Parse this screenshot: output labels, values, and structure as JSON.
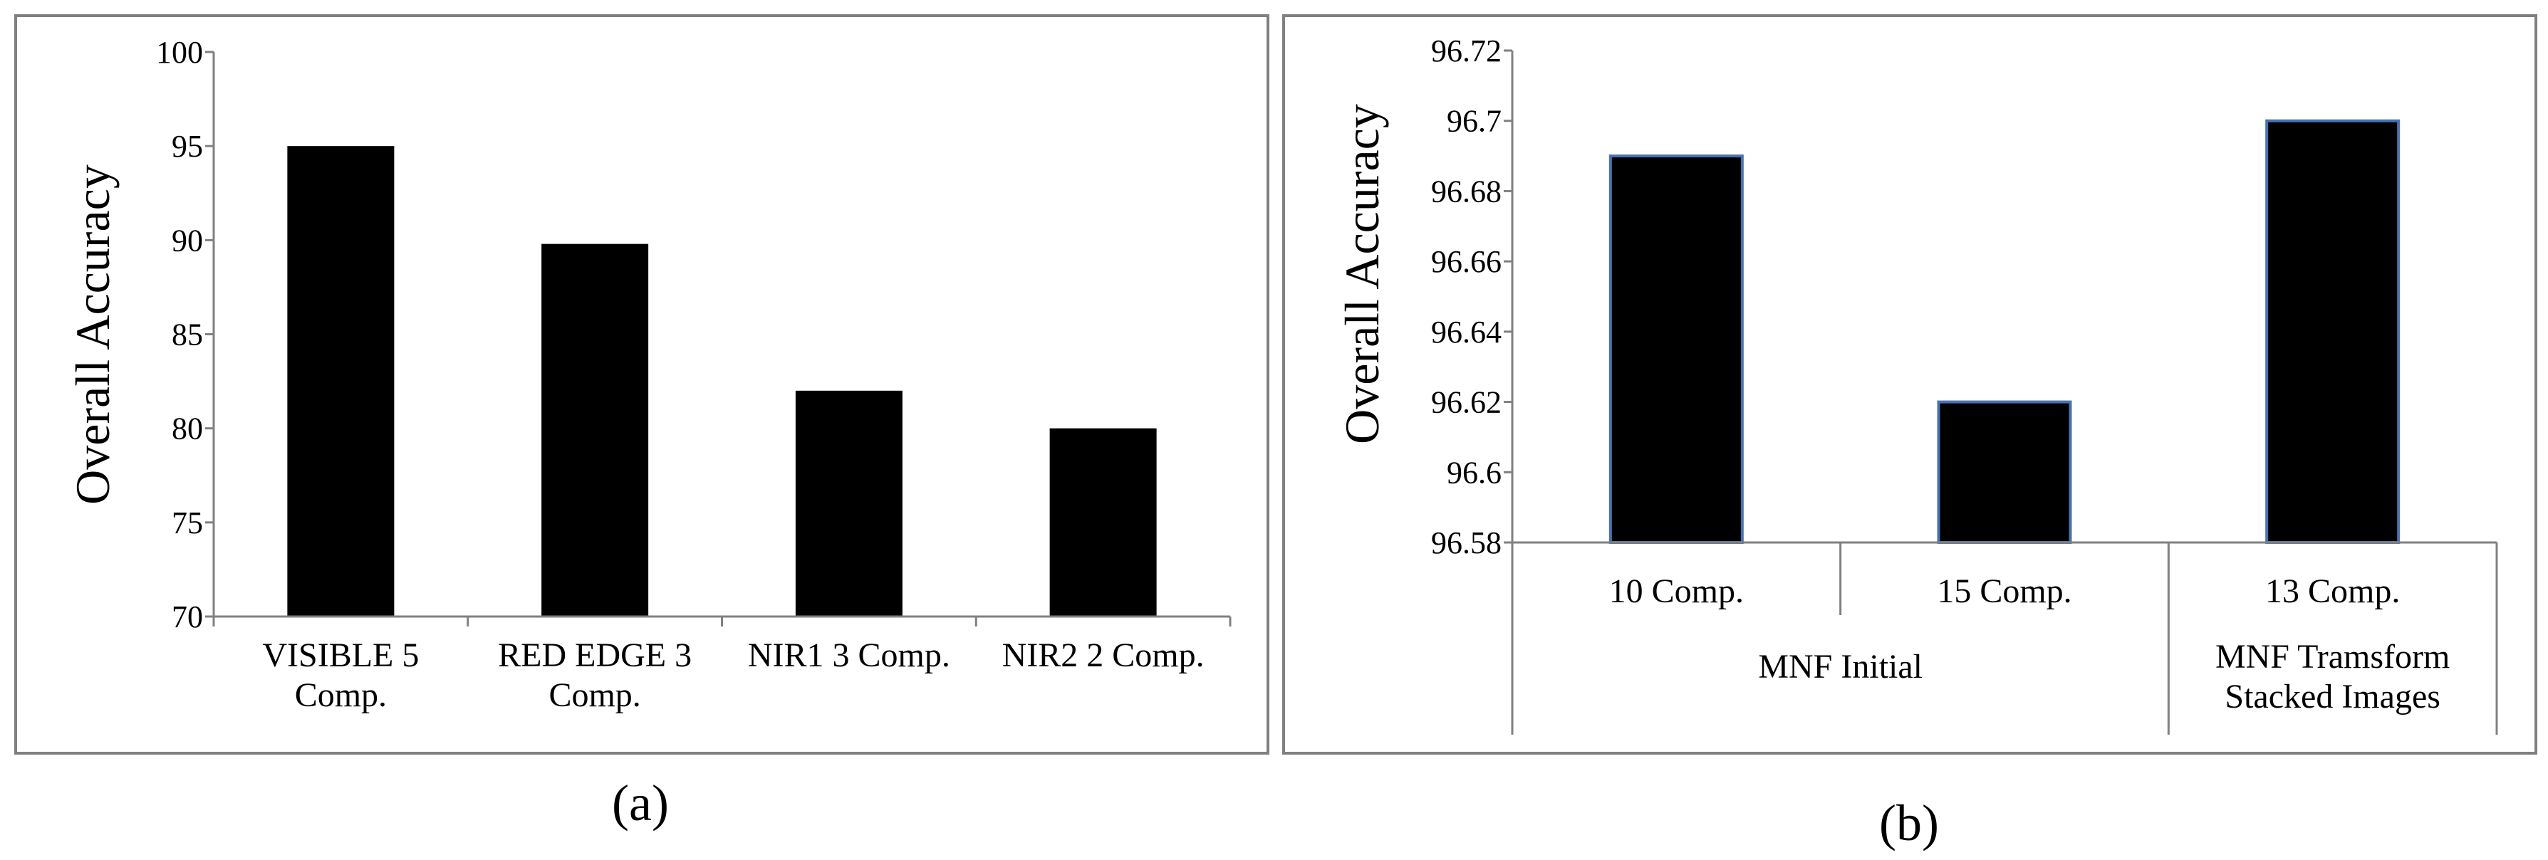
{
  "colors": {
    "bar_fill": "#000000",
    "bar_stroke_b": "#4a72b0",
    "frame": "#808080",
    "axis": "#808080",
    "background": "#ffffff"
  },
  "panel_labels": [
    "(a)",
    "(b)"
  ],
  "chart_data": [
    {
      "type": "bar",
      "panel": "(a)",
      "ylabel": "Overall Accuracy",
      "xlabel": "",
      "ylim": [
        70,
        100
      ],
      "yticks": [
        "70",
        "75",
        "80",
        "85",
        "90",
        "95",
        "100"
      ],
      "categories": [
        [
          "VISIBLE 5",
          "Comp."
        ],
        [
          "RED EDGE 3",
          "Comp."
        ],
        [
          "NIR1 3 Comp."
        ],
        [
          "NIR2 2 Comp."
        ]
      ],
      "values": [
        95,
        89.8,
        82,
        80
      ],
      "grid": false,
      "legend": "none"
    },
    {
      "type": "bar",
      "panel": "(b)",
      "ylabel": "Overall Accuracy",
      "xlabel": "",
      "ylim": [
        96.58,
        96.72
      ],
      "yticks": [
        "96.58",
        "96.6",
        "96.62",
        "96.64",
        "96.66",
        "96.68",
        "96.7",
        "96.72"
      ],
      "categories": [
        "10 Comp.",
        "15 Comp.",
        "13 Comp."
      ],
      "groups": [
        {
          "label": [
            "MNF Initial"
          ],
          "span": 2
        },
        {
          "label": [
            "MNF Tramsform",
            "Stacked Images"
          ],
          "span": 1
        }
      ],
      "values": [
        96.69,
        96.62,
        96.7
      ],
      "grid": false,
      "legend": "none"
    }
  ]
}
